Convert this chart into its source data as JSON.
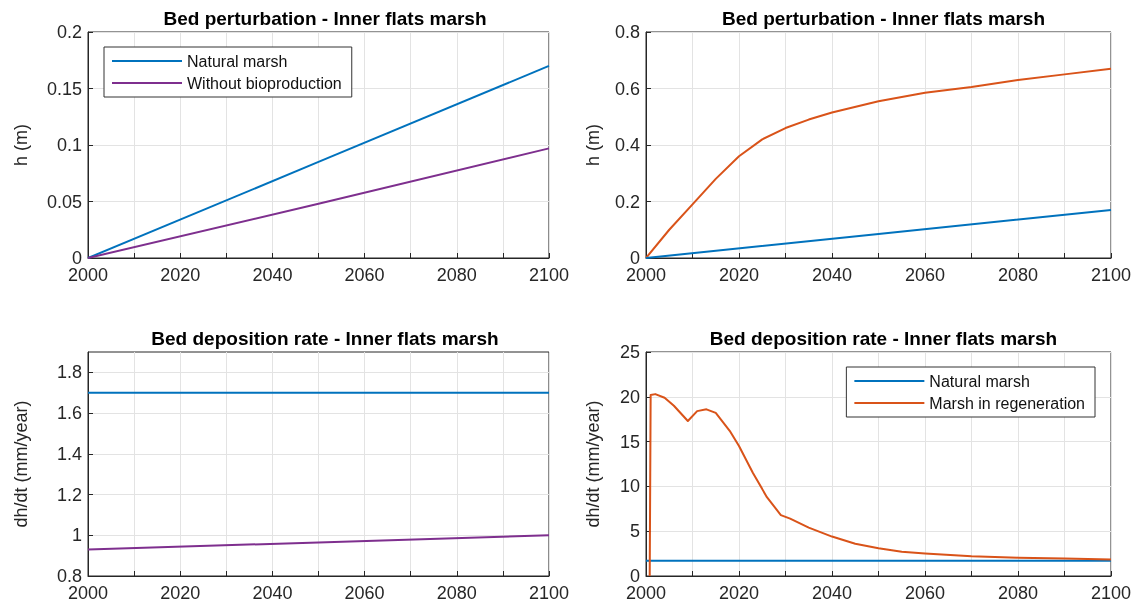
{
  "chart_data": [
    {
      "type": "line",
      "title": "Bed perturbation - Inner flats marsh",
      "ylabel": "h (m)",
      "xlim": [
        2000,
        2100
      ],
      "xticks": [
        2000,
        {
          "value": 2010,
          "label": null
        },
        2020,
        {
          "value": 2030,
          "label": null
        },
        2040,
        {
          "value": 2050,
          "label": null
        },
        2060,
        {
          "value": 2070,
          "label": null
        },
        2080,
        {
          "value": 2090,
          "label": null
        },
        2100
      ],
      "ylim": [
        0,
        0.2
      ],
      "yticks": [
        0,
        0.05,
        0.1,
        0.15,
        0.2
      ],
      "grid": true,
      "legend": "top left",
      "series": [
        {
          "name": "Natural marsh",
          "color": "#0072bd",
          "x": [
            2000,
            2050,
            2100
          ],
          "values": [
            0,
            0.085,
            0.17
          ]
        },
        {
          "name": "Without bioproduction",
          "color": "#7e2f8e",
          "x": [
            2000,
            2050,
            2100
          ],
          "values": [
            0,
            0.048,
            0.097
          ]
        }
      ]
    },
    {
      "type": "line",
      "title": "Bed perturbation - Inner flats marsh",
      "ylabel": "h (m)",
      "xlim": [
        2000,
        2100
      ],
      "xticks": [
        2000,
        {
          "value": 2010,
          "label": null
        },
        2020,
        {
          "value": 2030,
          "label": null
        },
        2040,
        {
          "value": 2050,
          "label": null
        },
        2060,
        {
          "value": 2070,
          "label": null
        },
        2080,
        {
          "value": 2090,
          "label": null
        },
        2100
      ],
      "ylim": [
        0,
        0.8
      ],
      "yticks": [
        0,
        0.2,
        0.4,
        0.6,
        0.8
      ],
      "grid": true,
      "series": [
        {
          "color": "#d95319",
          "x": [
            2000,
            2005,
            2010,
            2015,
            2020,
            2025,
            2030,
            2035,
            2040,
            2050,
            2060,
            2070,
            2080,
            2090,
            2100
          ],
          "values": [
            0,
            0.1,
            0.19,
            0.28,
            0.36,
            0.42,
            0.46,
            0.49,
            0.515,
            0.555,
            0.585,
            0.605,
            0.63,
            0.65,
            0.67
          ]
        },
        {
          "color": "#0072bd",
          "x": [
            2000,
            2050,
            2100
          ],
          "values": [
            0,
            0.085,
            0.17
          ]
        }
      ]
    },
    {
      "type": "line",
      "title": "Bed deposition rate - Inner flats marsh",
      "ylabel": "dh/dt (mm/year)",
      "xlim": [
        2000,
        2100
      ],
      "xticks": [
        2000,
        {
          "value": 2010,
          "label": null
        },
        2020,
        {
          "value": 2030,
          "label": null
        },
        2040,
        {
          "value": 2050,
          "label": null
        },
        2060,
        {
          "value": 2070,
          "label": null
        },
        2080,
        {
          "value": 2090,
          "label": null
        },
        2100
      ],
      "ylim": [
        0.8,
        1.9
      ],
      "yticks": [
        0.8,
        1,
        1.2,
        1.4,
        1.6,
        1.8
      ],
      "grid": true,
      "series": [
        {
          "color": "#0072bd",
          "x": [
            2000,
            2100
          ],
          "values": [
            1.7,
            1.7
          ]
        },
        {
          "color": "#7e2f8e",
          "x": [
            2000,
            2050,
            2100
          ],
          "values": [
            0.93,
            0.965,
            1.0
          ]
        }
      ]
    },
    {
      "type": "line",
      "title": "Bed deposition rate - Inner flats marsh",
      "ylabel": "dh/dt (mm/year)",
      "xlim": [
        2000,
        2100
      ],
      "xticks": [
        2000,
        {
          "value": 2010,
          "label": null
        },
        2020,
        {
          "value": 2030,
          "label": null
        },
        2040,
        {
          "value": 2050,
          "label": null
        },
        2060,
        {
          "value": 2070,
          "label": null
        },
        2080,
        {
          "value": 2090,
          "label": null
        },
        2100
      ],
      "ylim": [
        0,
        25
      ],
      "yticks": [
        0,
        5,
        10,
        15,
        20,
        25
      ],
      "grid": true,
      "legend": "top right",
      "series": [
        {
          "name": "Natural marsh",
          "color": "#0072bd",
          "x": [
            2000,
            2100
          ],
          "values": [
            1.7,
            1.7
          ]
        },
        {
          "name": "Marsh in regeneration",
          "color": "#d95319",
          "x": [
            2000.8,
            2001,
            2002,
            2004,
            2006,
            2009,
            2011,
            2013,
            2015,
            2018,
            2020,
            2023,
            2026,
            2029,
            2031,
            2035,
            2040,
            2045,
            2050,
            2055,
            2060,
            2070,
            2080,
            2090,
            2100
          ],
          "values": [
            0,
            20.2,
            20.3,
            19.9,
            19,
            17.3,
            18.4,
            18.6,
            18.2,
            16.2,
            14.5,
            11.5,
            8.8,
            6.8,
            6.4,
            5.4,
            4.4,
            3.6,
            3.1,
            2.7,
            2.5,
            2.2,
            2.05,
            1.95,
            1.85
          ]
        }
      ]
    }
  ]
}
